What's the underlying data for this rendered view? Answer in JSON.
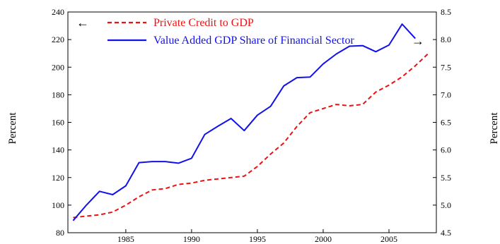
{
  "chart_data": {
    "type": "line",
    "title": "",
    "x": [
      1981,
      1982,
      1983,
      1984,
      1985,
      1986,
      1987,
      1988,
      1989,
      1990,
      1991,
      1992,
      1993,
      1994,
      1995,
      1996,
      1997,
      1998,
      1999,
      2000,
      2001,
      2002,
      2003,
      2004,
      2005,
      2006,
      2007,
      2008
    ],
    "x_tick_labels": [
      "1985",
      "1990",
      "1995",
      "2000",
      "2005"
    ],
    "x_ticks": [
      1985,
      1990,
      1995,
      2000,
      2005
    ],
    "xlim": [
      1980.6,
      2008.6
    ],
    "ylabel_left": "Percent",
    "ylabel_right": "Percent",
    "ylim_left": [
      80,
      240
    ],
    "yticks_left": [
      80,
      100,
      120,
      140,
      160,
      180,
      200,
      220,
      240
    ],
    "ylim_right": [
      4.5,
      8.5
    ],
    "yticks_right": [
      "4.5",
      "5.0",
      "5.5",
      "6.0",
      "6.5",
      "7.0",
      "7.5",
      "8.0",
      "8.5"
    ],
    "legend_position": "top",
    "series": [
      {
        "name": "Private Credit to GDP",
        "axis": "left",
        "color": "#ee1111",
        "style": "dashed",
        "values": [
          91,
          92,
          93,
          95,
          100,
          106,
          111,
          112,
          115,
          116,
          118,
          119,
          120,
          121,
          128,
          137,
          145,
          157,
          167,
          170,
          173,
          172,
          173,
          182,
          187,
          193,
          201,
          210
        ]
      },
      {
        "name": "Value Added GDP Share of Financial Sector",
        "axis": "right",
        "color": "#1111ee",
        "style": "solid",
        "values": [
          4.72,
          5.0,
          5.25,
          5.19,
          5.35,
          5.77,
          5.79,
          5.79,
          5.76,
          5.85,
          6.28,
          6.43,
          6.57,
          6.35,
          6.63,
          6.79,
          7.16,
          7.31,
          7.32,
          7.56,
          7.74,
          7.88,
          7.89,
          7.78,
          7.9,
          8.28,
          8.02,
          null
        ]
      }
    ],
    "legend_arrows": {
      "left_series": "←",
      "right_series": "→"
    }
  }
}
